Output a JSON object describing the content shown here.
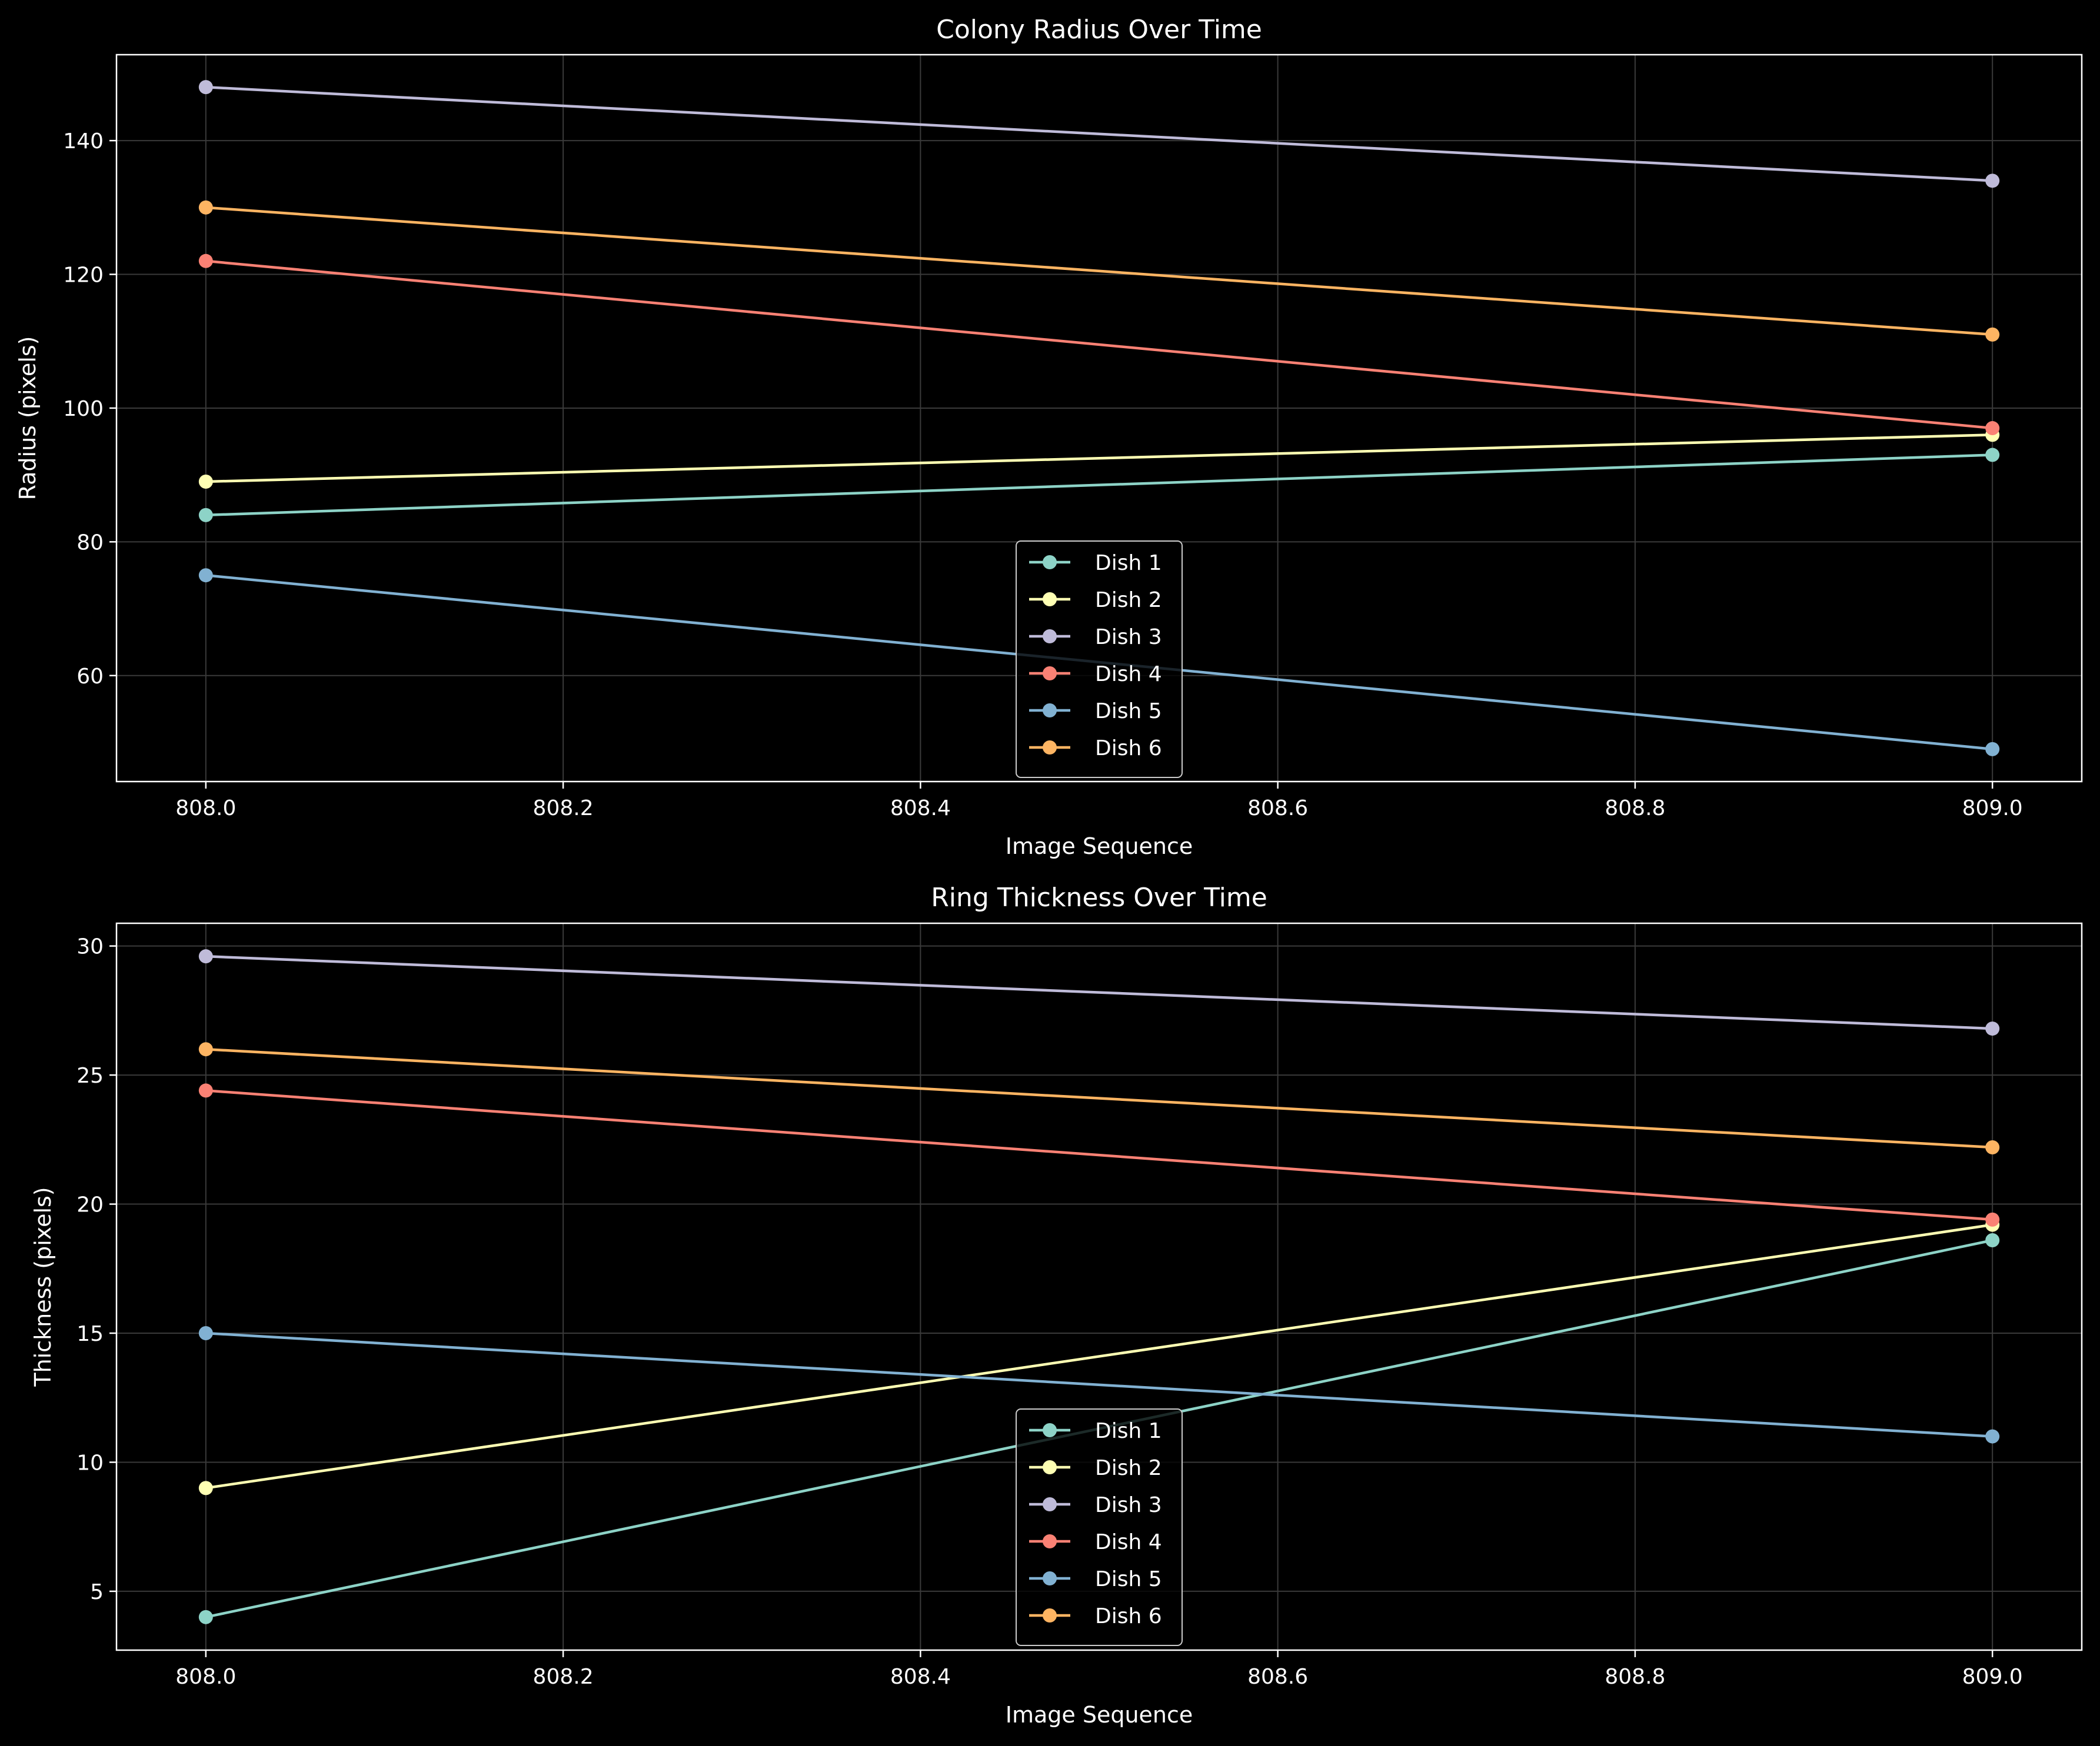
{
  "figure": {
    "background": "#000000",
    "text_color": "#ffffff",
    "grid_color": "#3a3a3a"
  },
  "chart_data": [
    {
      "type": "line",
      "title": "Colony Radius Over Time",
      "xlabel": "Image Sequence",
      "ylabel": "Radius (pixels)",
      "x": [
        808.0,
        809.0
      ],
      "xlim": [
        807.95,
        809.05
      ],
      "ylim": [
        44.15,
        152.85
      ],
      "xticks": [
        808.0,
        808.2,
        808.4,
        808.6,
        808.8,
        809.0
      ],
      "xtick_labels": [
        "808.0",
        "808.2",
        "808.4",
        "808.6",
        "808.8",
        "809.0"
      ],
      "yticks": [
        60,
        80,
        100,
        120,
        140
      ],
      "ytick_labels": [
        "60",
        "80",
        "100",
        "120",
        "140"
      ],
      "grid": true,
      "legend_position": "lower center",
      "series": [
        {
          "name": "Dish 1",
          "color": "#8dd3c7",
          "values": [
            84,
            93
          ]
        },
        {
          "name": "Dish 2",
          "color": "#feffb3",
          "values": [
            89,
            96
          ]
        },
        {
          "name": "Dish 3",
          "color": "#bfbbd9",
          "values": [
            148,
            134
          ]
        },
        {
          "name": "Dish 4",
          "color": "#fa8174",
          "values": [
            122,
            97
          ]
        },
        {
          "name": "Dish 5",
          "color": "#81b1d2",
          "values": [
            75,
            49
          ]
        },
        {
          "name": "Dish 6",
          "color": "#fdb462",
          "values": [
            130,
            111
          ]
        }
      ]
    },
    {
      "type": "line",
      "title": "Ring Thickness Over Time",
      "xlabel": "Image Sequence",
      "ylabel": "Thickness (pixels)",
      "x": [
        808.0,
        809.0
      ],
      "xlim": [
        807.95,
        809.05
      ],
      "ylim": [
        2.72,
        30.88
      ],
      "xticks": [
        808.0,
        808.2,
        808.4,
        808.6,
        808.8,
        809.0
      ],
      "xtick_labels": [
        "808.0",
        "808.2",
        "808.4",
        "808.6",
        "808.8",
        "809.0"
      ],
      "yticks": [
        5,
        10,
        15,
        20,
        25,
        30
      ],
      "ytick_labels": [
        "5",
        "10",
        "15",
        "20",
        "25",
        "30"
      ],
      "grid": true,
      "legend_position": "lower center",
      "series": [
        {
          "name": "Dish 1",
          "color": "#8dd3c7",
          "values": [
            4.0,
            18.6
          ]
        },
        {
          "name": "Dish 2",
          "color": "#feffb3",
          "values": [
            9.0,
            19.2
          ]
        },
        {
          "name": "Dish 3",
          "color": "#bfbbd9",
          "values": [
            29.6,
            26.8
          ]
        },
        {
          "name": "Dish 4",
          "color": "#fa8174",
          "values": [
            24.4,
            19.4
          ]
        },
        {
          "name": "Dish 5",
          "color": "#81b1d2",
          "values": [
            15.0,
            11.0
          ]
        },
        {
          "name": "Dish 6",
          "color": "#fdb462",
          "values": [
            26.0,
            22.2
          ]
        }
      ]
    }
  ]
}
